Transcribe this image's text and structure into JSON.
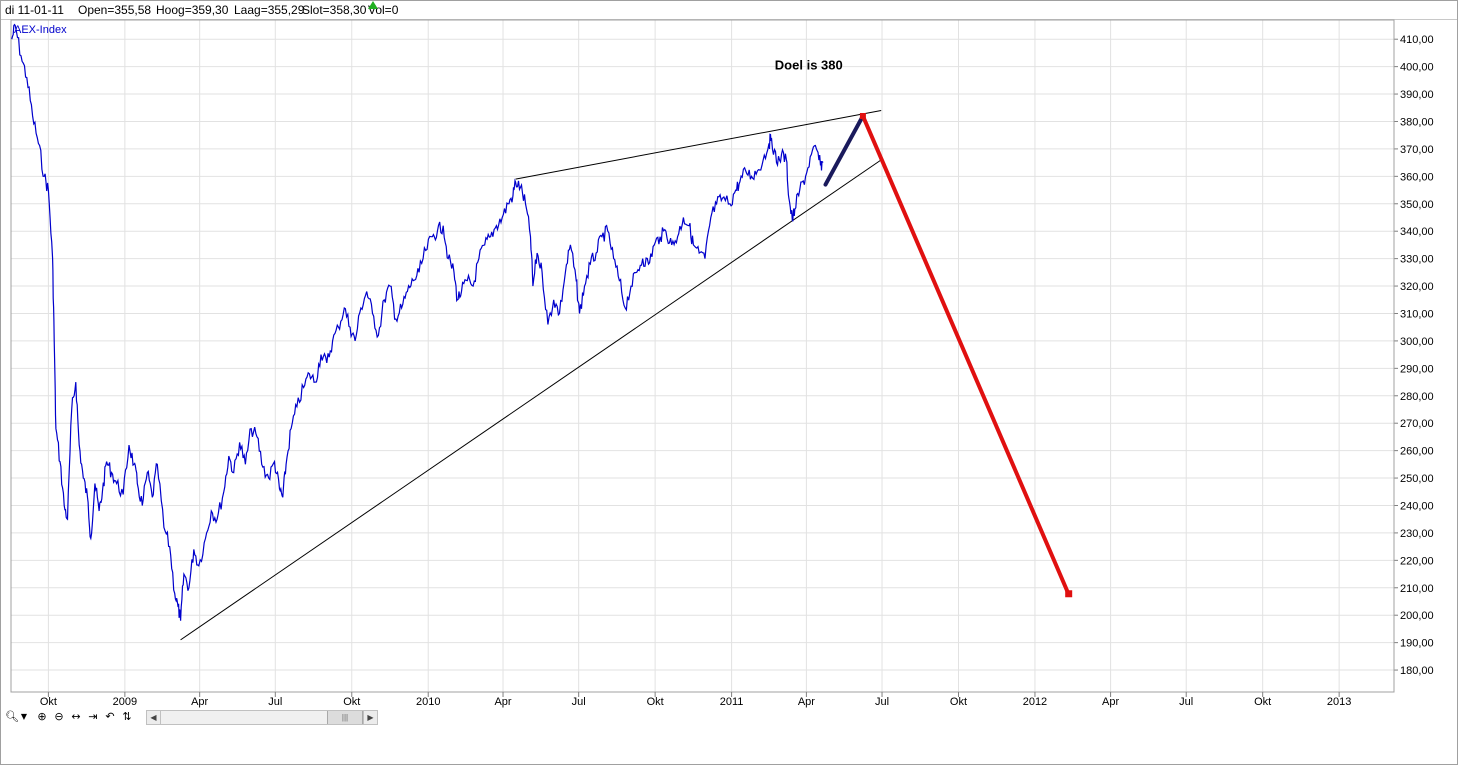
{
  "info_bar": {
    "date": "di 11-01-11",
    "open": "Open=355,58",
    "high": "Hoog=359,30",
    "low": "Laag=355,29",
    "close": "Slot=358,30",
    "volume": "Vol=0"
  },
  "chart_data": {
    "type": "line",
    "title": "AEX-Index",
    "series_color": "#0000cc",
    "y_ticks": [
      "180,00",
      "190,00",
      "200,00",
      "210,00",
      "220,00",
      "230,00",
      "240,00",
      "250,00",
      "260,00",
      "270,00",
      "280,00",
      "290,00",
      "300,00",
      "310,00",
      "320,00",
      "330,00",
      "340,00",
      "350,00",
      "360,00",
      "370,00",
      "380,00",
      "390,00",
      "400,00",
      "410,00"
    ],
    "y_range": [
      172,
      417
    ],
    "x_ticks": [
      "Okt",
      "2009",
      "Apr",
      "Jul",
      "Okt",
      "2010",
      "Apr",
      "Jul",
      "Okt",
      "2011",
      "Apr",
      "Jul",
      "Okt",
      "2012",
      "Apr",
      "Jul",
      "Okt",
      "2013"
    ],
    "x_range": [
      "2008-08-17",
      "2013-03-08"
    ],
    "x_tick_dates": [
      "2008-10-01",
      "2009-01-01",
      "2009-04-01",
      "2009-07-01",
      "2009-10-01",
      "2010-01-01",
      "2010-04-01",
      "2010-07-01",
      "2010-10-01",
      "2011-01-01",
      "2011-04-01",
      "2011-07-01",
      "2011-10-01",
      "2012-01-01",
      "2012-04-01",
      "2012-07-01",
      "2012-10-01",
      "2013-01-01"
    ],
    "grid": true,
    "series": [
      {
        "values": [
          [
            "2008-08-18",
            410
          ],
          [
            "2008-08-22",
            415
          ],
          [
            "2008-08-29",
            404
          ],
          [
            "2008-09-05",
            396
          ],
          [
            "2008-09-12",
            382
          ],
          [
            "2008-09-19",
            372
          ],
          [
            "2008-09-26",
            360
          ],
          [
            "2008-10-01",
            355
          ],
          [
            "2008-10-06",
            330
          ],
          [
            "2008-10-08",
            300
          ],
          [
            "2008-10-10",
            268
          ],
          [
            "2008-10-15",
            256
          ],
          [
            "2008-10-20",
            240
          ],
          [
            "2008-10-24",
            235
          ],
          [
            "2008-10-29",
            275
          ],
          [
            "2008-11-03",
            285
          ],
          [
            "2008-11-07",
            262
          ],
          [
            "2008-11-12",
            250
          ],
          [
            "2008-11-17",
            243
          ],
          [
            "2008-11-21",
            228
          ],
          [
            "2008-11-26",
            248
          ],
          [
            "2008-12-01",
            238
          ],
          [
            "2008-12-05",
            245
          ],
          [
            "2008-12-10",
            256
          ],
          [
            "2008-12-16",
            252
          ],
          [
            "2008-12-22",
            248
          ],
          [
            "2008-12-30",
            244
          ],
          [
            "2009-01-06",
            262
          ],
          [
            "2009-01-12",
            255
          ],
          [
            "2009-01-16",
            248
          ],
          [
            "2009-01-22",
            240
          ],
          [
            "2009-01-28",
            252
          ],
          [
            "2009-02-03",
            243
          ],
          [
            "2009-02-09",
            255
          ],
          [
            "2009-02-17",
            232
          ],
          [
            "2009-02-24",
            225
          ],
          [
            "2009-03-02",
            208
          ],
          [
            "2009-03-06",
            203
          ],
          [
            "2009-03-09",
            198
          ],
          [
            "2009-03-13",
            215
          ],
          [
            "2009-03-19",
            210
          ],
          [
            "2009-03-25",
            224
          ],
          [
            "2009-03-31",
            218
          ],
          [
            "2009-04-08",
            228
          ],
          [
            "2009-04-15",
            238
          ],
          [
            "2009-04-22",
            235
          ],
          [
            "2009-04-30",
            245
          ],
          [
            "2009-05-06",
            258
          ],
          [
            "2009-05-12",
            252
          ],
          [
            "2009-05-19",
            263
          ],
          [
            "2009-05-26",
            255
          ],
          [
            "2009-06-02",
            268
          ],
          [
            "2009-06-09",
            265
          ],
          [
            "2009-06-16",
            254
          ],
          [
            "2009-06-23",
            250
          ],
          [
            "2009-06-30",
            256
          ],
          [
            "2009-07-06",
            246
          ],
          [
            "2009-07-10",
            243
          ],
          [
            "2009-07-14",
            255
          ],
          [
            "2009-07-20",
            268
          ],
          [
            "2009-07-27",
            276
          ],
          [
            "2009-08-04",
            283
          ],
          [
            "2009-08-11",
            288
          ],
          [
            "2009-08-18",
            285
          ],
          [
            "2009-08-25",
            295
          ],
          [
            "2009-09-01",
            292
          ],
          [
            "2009-09-08",
            300
          ],
          [
            "2009-09-15",
            305
          ],
          [
            "2009-09-22",
            312
          ],
          [
            "2009-09-29",
            305
          ],
          [
            "2009-10-05",
            300
          ],
          [
            "2009-10-12",
            312
          ],
          [
            "2009-10-19",
            318
          ],
          [
            "2009-10-26",
            310
          ],
          [
            "2009-11-02",
            302
          ],
          [
            "2009-11-09",
            315
          ],
          [
            "2009-11-16",
            320
          ],
          [
            "2009-11-23",
            308
          ],
          [
            "2009-11-30",
            312
          ],
          [
            "2009-12-07",
            318
          ],
          [
            "2009-12-14",
            322
          ],
          [
            "2009-12-21",
            325
          ],
          [
            "2009-12-29",
            333
          ],
          [
            "2010-01-06",
            338
          ],
          [
            "2010-01-12",
            340
          ],
          [
            "2010-01-19",
            342
          ],
          [
            "2010-01-25",
            330
          ],
          [
            "2010-02-01",
            325
          ],
          [
            "2010-02-05",
            315
          ],
          [
            "2010-02-10",
            318
          ],
          [
            "2010-02-17",
            322
          ],
          [
            "2010-02-24",
            320
          ],
          [
            "2010-03-03",
            330
          ],
          [
            "2010-03-10",
            335
          ],
          [
            "2010-03-17",
            338
          ],
          [
            "2010-03-24",
            342
          ],
          [
            "2010-03-31",
            345
          ],
          [
            "2010-04-07",
            350
          ],
          [
            "2010-04-13",
            353
          ],
          [
            "2010-04-16",
            358
          ],
          [
            "2010-04-22",
            356
          ],
          [
            "2010-04-28",
            350
          ],
          [
            "2010-05-04",
            338
          ],
          [
            "2010-05-07",
            320
          ],
          [
            "2010-05-12",
            332
          ],
          [
            "2010-05-18",
            325
          ],
          [
            "2010-05-25",
            306
          ],
          [
            "2010-06-01",
            315
          ],
          [
            "2010-06-08",
            310
          ],
          [
            "2010-06-15",
            325
          ],
          [
            "2010-06-21",
            335
          ],
          [
            "2010-06-28",
            322
          ],
          [
            "2010-07-02",
            310
          ],
          [
            "2010-07-08",
            320
          ],
          [
            "2010-07-15",
            328
          ],
          [
            "2010-07-22",
            332
          ],
          [
            "2010-07-29",
            338
          ],
          [
            "2010-08-05",
            340
          ],
          [
            "2010-08-12",
            330
          ],
          [
            "2010-08-19",
            322
          ],
          [
            "2010-08-26",
            312
          ],
          [
            "2010-09-02",
            320
          ],
          [
            "2010-09-09",
            325
          ],
          [
            "2010-09-16",
            330
          ],
          [
            "2010-09-23",
            328
          ],
          [
            "2010-09-30",
            335
          ],
          [
            "2010-10-07",
            338
          ],
          [
            "2010-10-14",
            340
          ],
          [
            "2010-10-21",
            335
          ],
          [
            "2010-10-28",
            338
          ],
          [
            "2010-11-04",
            345
          ],
          [
            "2010-11-11",
            342
          ],
          [
            "2010-11-16",
            335
          ],
          [
            "2010-11-23",
            332
          ],
          [
            "2010-11-30",
            330
          ],
          [
            "2010-12-07",
            345
          ],
          [
            "2010-12-14",
            350
          ],
          [
            "2010-12-21",
            352
          ],
          [
            "2010-12-30",
            350
          ],
          [
            "2011-01-06",
            355
          ],
          [
            "2011-01-11",
            358
          ],
          [
            "2011-01-18",
            362
          ],
          [
            "2011-01-25",
            360
          ],
          [
            "2011-02-01",
            362
          ],
          [
            "2011-02-08",
            366
          ],
          [
            "2011-02-15",
            372
          ],
          [
            "2011-02-18",
            374
          ],
          [
            "2011-02-24",
            365
          ],
          [
            "2011-03-02",
            368
          ],
          [
            "2011-03-08",
            366
          ],
          [
            "2011-03-11",
            352
          ],
          [
            "2011-03-15",
            344
          ],
          [
            "2011-03-18",
            348
          ],
          [
            "2011-03-24",
            355
          ],
          [
            "2011-03-31",
            360
          ],
          [
            "2011-04-07",
            368
          ],
          [
            "2011-04-13",
            370
          ],
          [
            "2011-04-18",
            364
          ],
          [
            "2011-04-21",
            365
          ]
        ]
      }
    ],
    "trendlines": [
      {
        "from": [
          "2009-03-09",
          191
        ],
        "to": [
          "2011-06-30",
          366
        ],
        "color": "#000000"
      },
      {
        "from": [
          "2010-04-16",
          359
        ],
        "to": [
          "2011-06-30",
          384
        ],
        "color": "#000000"
      }
    ],
    "projections": [
      {
        "from": [
          "2011-04-24",
          357
        ],
        "to": [
          "2011-06-08",
          382
        ],
        "color": "#1a1a5c"
      },
      {
        "from": [
          "2011-06-08",
          382
        ],
        "to": [
          "2012-02-10",
          208
        ],
        "color": "#e01010"
      }
    ],
    "annotation": {
      "text": "Doel is 380",
      "at": [
        "2011-02-22",
        399
      ]
    }
  },
  "toolbar": {
    "icons": [
      "zoom-select-icon",
      "dropdown-arrow-icon",
      "zoom-in-icon",
      "zoom-out-icon",
      "fit-width-icon",
      "go-to-end-icon",
      "undo-icon",
      "data-cursor-icon"
    ]
  }
}
